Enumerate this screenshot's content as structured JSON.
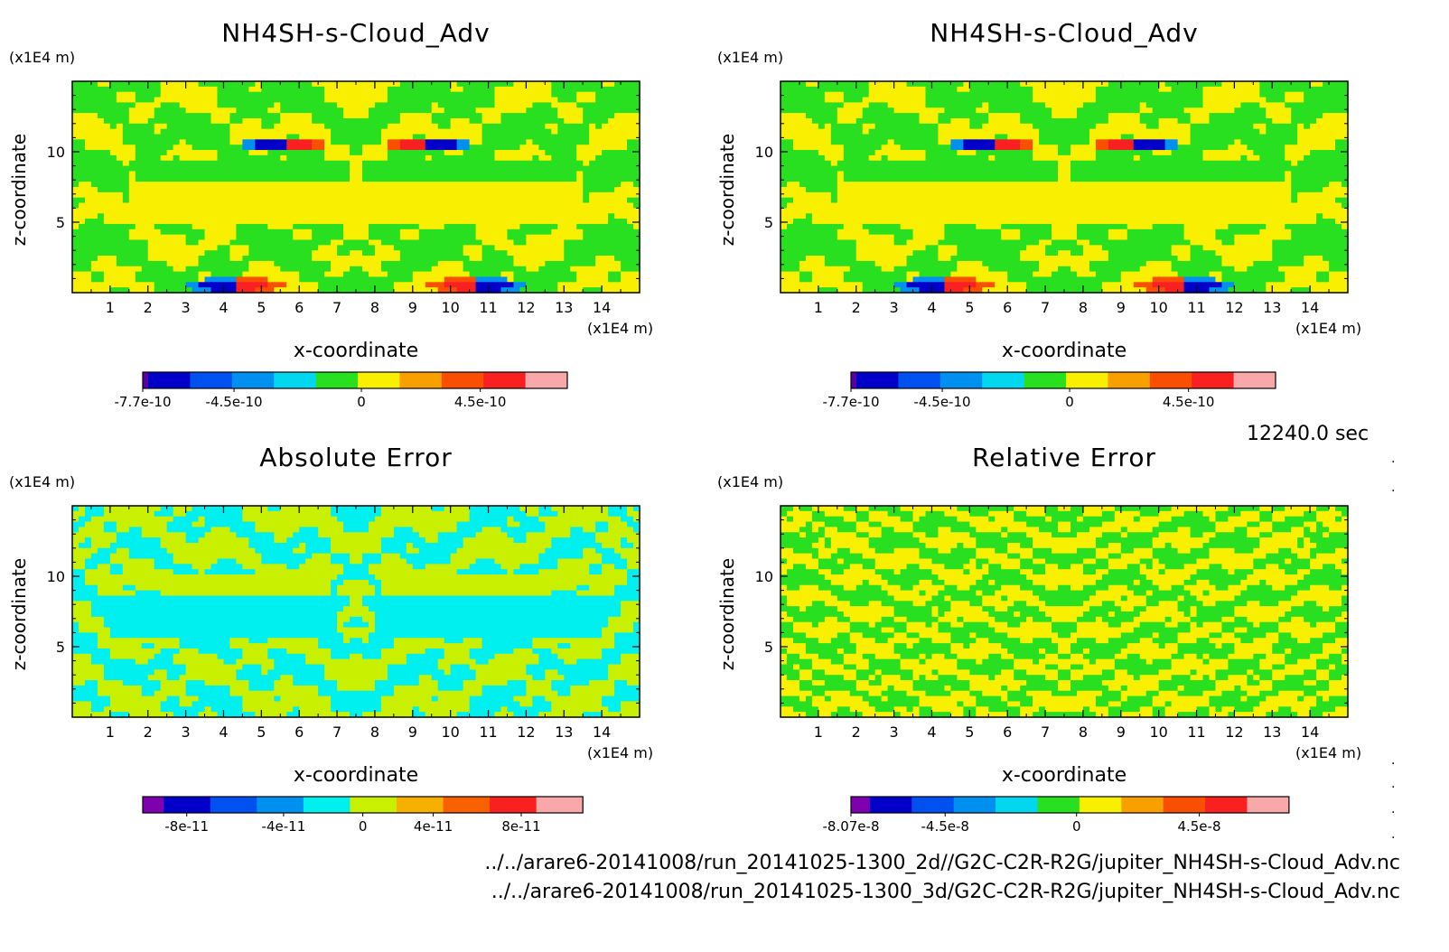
{
  "time_label": "12240.0 sec",
  "files": [
    "../../arare6-20141008/run_20141025-1300_2d//G2C-C2R-R2G/jupiter_NH4SH-s-Cloud_Adv.nc",
    "../../arare6-20141008/run_20141025-1300_3d/G2C-C2R-R2G/jupiter_NH4SH-s-Cloud_Adv.nc"
  ],
  "chart_data": [
    {
      "type": "heatmap",
      "title": "NH4SH-s-Cloud_Adv",
      "xlabel": "x-coordinate",
      "ylabel": "z-coordinate",
      "x_unit": "(x1E4 m)",
      "y_unit": "(x1E4 m)",
      "xlim": [
        0,
        15
      ],
      "ylim": [
        0,
        15
      ],
      "x_ticks": [
        1,
        2,
        3,
        4,
        5,
        6,
        7,
        8,
        9,
        10,
        11,
        12,
        13,
        14
      ],
      "y_ticks": [
        5,
        10
      ],
      "colorbar": {
        "colors": [
          "#5a00a0",
          "#0000c8",
          "#0050f0",
          "#0090f0",
          "#00d8f0",
          "#28e020",
          "#f8f000",
          "#f8a000",
          "#f85000",
          "#f82020",
          "#f8a8a8"
        ],
        "tick_labels": [
          "-7.7e-10",
          "-4.5e-10",
          "0",
          "4.5e-10"
        ]
      }
    },
    {
      "type": "heatmap",
      "title": "NH4SH-s-Cloud_Adv",
      "xlabel": "x-coordinate",
      "ylabel": "z-coordinate",
      "x_unit": "(x1E4 m)",
      "y_unit": "(x1E4 m)",
      "xlim": [
        0,
        15
      ],
      "ylim": [
        0,
        15
      ],
      "x_ticks": [
        1,
        2,
        3,
        4,
        5,
        6,
        7,
        8,
        9,
        10,
        11,
        12,
        13,
        14
      ],
      "y_ticks": [
        5,
        10
      ],
      "colorbar": {
        "colors": [
          "#5a00a0",
          "#0000c8",
          "#0050f0",
          "#0090f0",
          "#00d8f0",
          "#28e020",
          "#f8f000",
          "#f8a000",
          "#f85000",
          "#f82020",
          "#f8a8a8"
        ],
        "tick_labels": [
          "-7.7e-10",
          "-4.5e-10",
          "0",
          "4.5e-10"
        ]
      }
    },
    {
      "type": "heatmap",
      "title": "Absolute Error",
      "xlabel": "x-coordinate",
      "ylabel": "z-coordinate",
      "x_unit": "(x1E4 m)",
      "y_unit": "(x1E4 m)",
      "xlim": [
        0,
        15
      ],
      "ylim": [
        0,
        15
      ],
      "x_ticks": [
        1,
        2,
        3,
        4,
        5,
        6,
        7,
        8,
        9,
        10,
        11,
        12,
        13,
        14
      ],
      "y_ticks": [
        5,
        10
      ],
      "colorbar": {
        "colors": [
          "#8000b0",
          "#0000c8",
          "#0050f0",
          "#0090f0",
          "#00f0f0",
          "#c8f000",
          "#f8b000",
          "#f86000",
          "#f82020",
          "#f8a8a8"
        ],
        "tick_labels": [
          "-8e-11",
          "-4e-11",
          "0",
          "4e-11",
          "8e-11"
        ]
      }
    },
    {
      "type": "heatmap",
      "title": "Relative Error",
      "xlabel": "x-coordinate",
      "ylabel": "z-coordinate",
      "x_unit": "(x1E4 m)",
      "y_unit": "(x1E4 m)",
      "xlim": [
        0,
        15
      ],
      "ylim": [
        0,
        15
      ],
      "x_ticks": [
        1,
        2,
        3,
        4,
        5,
        6,
        7,
        8,
        9,
        10,
        11,
        12,
        13,
        14
      ],
      "y_ticks": [
        5,
        10
      ],
      "colorbar": {
        "colors": [
          "#8000b0",
          "#0000c8",
          "#0050f0",
          "#0090f0",
          "#00d8f0",
          "#28e020",
          "#f8f000",
          "#f8a000",
          "#f85000",
          "#f82020",
          "#f8a8a8"
        ],
        "tick_labels": [
          "-8.07e-8",
          "-4.5e-8",
          "0",
          "4.5e-8"
        ]
      }
    }
  ]
}
